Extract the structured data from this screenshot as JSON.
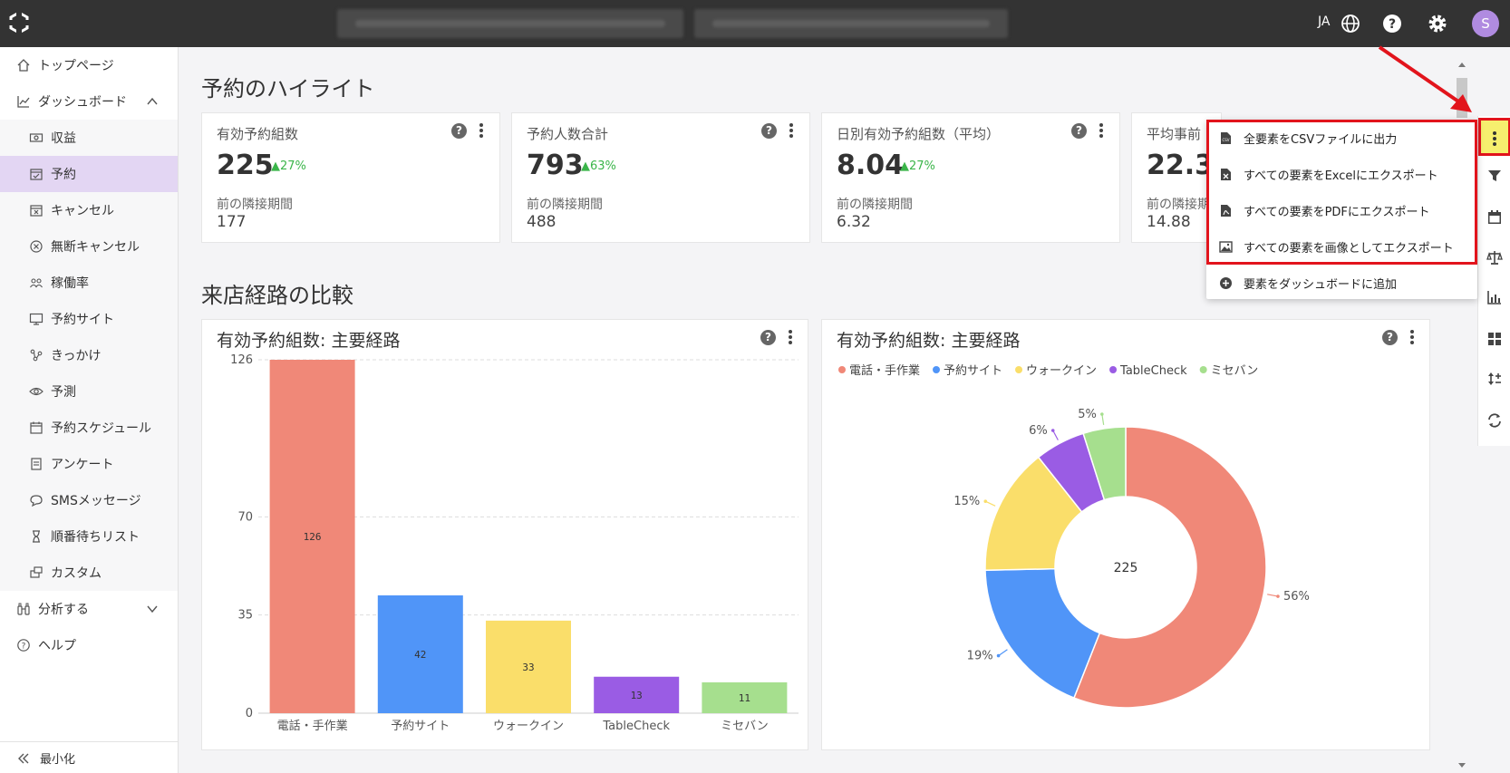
{
  "topbar": {
    "lang": "JA",
    "avatar_letter": "S"
  },
  "sidebar": {
    "items": [
      {
        "label": "トップページ",
        "icon": "home-icon"
      },
      {
        "label": "ダッシュボード",
        "icon": "chart-line-icon"
      },
      {
        "label": "収益",
        "icon": "money-icon"
      },
      {
        "label": "予約",
        "icon": "calendar-check-icon"
      },
      {
        "label": "キャンセル",
        "icon": "calendar-x-icon"
      },
      {
        "label": "無断キャンセル",
        "icon": "circle-x-icon"
      },
      {
        "label": "稼働率",
        "icon": "people-icon"
      },
      {
        "label": "予約サイト",
        "icon": "monitor-icon"
      },
      {
        "label": "きっかけ",
        "icon": "nodes-icon"
      },
      {
        "label": "予測",
        "icon": "eye-icon"
      },
      {
        "label": "予約スケジュール",
        "icon": "calendar-icon"
      },
      {
        "label": "アンケート",
        "icon": "form-icon"
      },
      {
        "label": "SMSメッセージ",
        "icon": "chat-icon"
      },
      {
        "label": "順番待ちリスト",
        "icon": "hourglass-icon"
      },
      {
        "label": "カスタム",
        "icon": "custom-icon"
      },
      {
        "label": "分析する",
        "icon": "binoculars-icon"
      },
      {
        "label": "ヘルプ",
        "icon": "help-circle-icon"
      }
    ],
    "minimize": "最小化"
  },
  "highlights": {
    "title": "予約のハイライト",
    "cards": [
      {
        "label": "有効予約組数",
        "value": "225",
        "delta": "27%",
        "sub": "前の隣接期間",
        "prev": "177"
      },
      {
        "label": "予約人数合計",
        "value": "793",
        "delta": "63%",
        "sub": "前の隣接期間",
        "prev": "488"
      },
      {
        "label": "日別有効予約組数（平均）",
        "value": "8.04",
        "delta": "27%",
        "sub": "前の隣接期間",
        "prev": "6.32"
      },
      {
        "label": "平均事前",
        "value": "22.3",
        "delta": "",
        "sub": "前の隣接期",
        "prev": "14.88"
      }
    ]
  },
  "comparison": {
    "title": "来店経路の比較",
    "bar_title": "有効予約組数: 主要経路",
    "pie_title": "有効予約組数: 主要経路",
    "pie_center": "225"
  },
  "chart_data": [
    {
      "type": "bar",
      "title": "有効予約組数: 主要経路",
      "categories": [
        "電話・手作業",
        "予約サイト",
        "ウォークイン",
        "TableCheck",
        "ミセバン"
      ],
      "values": [
        126,
        42,
        33,
        13,
        11
      ],
      "yticks": [
        "0",
        "35",
        "70",
        "126"
      ],
      "ylim": [
        0,
        126
      ],
      "colors": [
        "#f08878",
        "#5095f8",
        "#fade6a",
        "#9a5ce4",
        "#a6df8e"
      ],
      "grid": true
    },
    {
      "type": "pie",
      "title": "有効予約組数: 主要経路",
      "labels": [
        "電話・手作業",
        "予約サイト",
        "ウォークイン",
        "TableCheck",
        "ミセバン"
      ],
      "values": [
        126,
        42,
        33,
        13,
        11
      ],
      "percent_labels": [
        "56%",
        "19%",
        "15%",
        "6%",
        "5%"
      ],
      "colors": [
        "#f08878",
        "#5095f8",
        "#fade6a",
        "#9a5ce4",
        "#a6df8e"
      ],
      "legend": "top-left"
    }
  ],
  "menu": {
    "items": [
      {
        "label": "全要素をCSVファイルに出力",
        "icon": "csv-file-icon"
      },
      {
        "label": "すべての要素をExcelにエクスポート",
        "icon": "excel-file-icon"
      },
      {
        "label": "すべての要素をPDFにエクスポート",
        "icon": "pdf-file-icon"
      },
      {
        "label": "すべての要素を画像としてエクスポート",
        "icon": "image-icon"
      },
      {
        "label": "要素をダッシュボードに追加",
        "icon": "plus-circle-icon"
      }
    ]
  },
  "colors": {
    "accent_red": "#e2141c",
    "highlight_yellow": "#f6ef6e",
    "active_nav": "#e3d6f3",
    "delta_green": "#3bb54a"
  }
}
